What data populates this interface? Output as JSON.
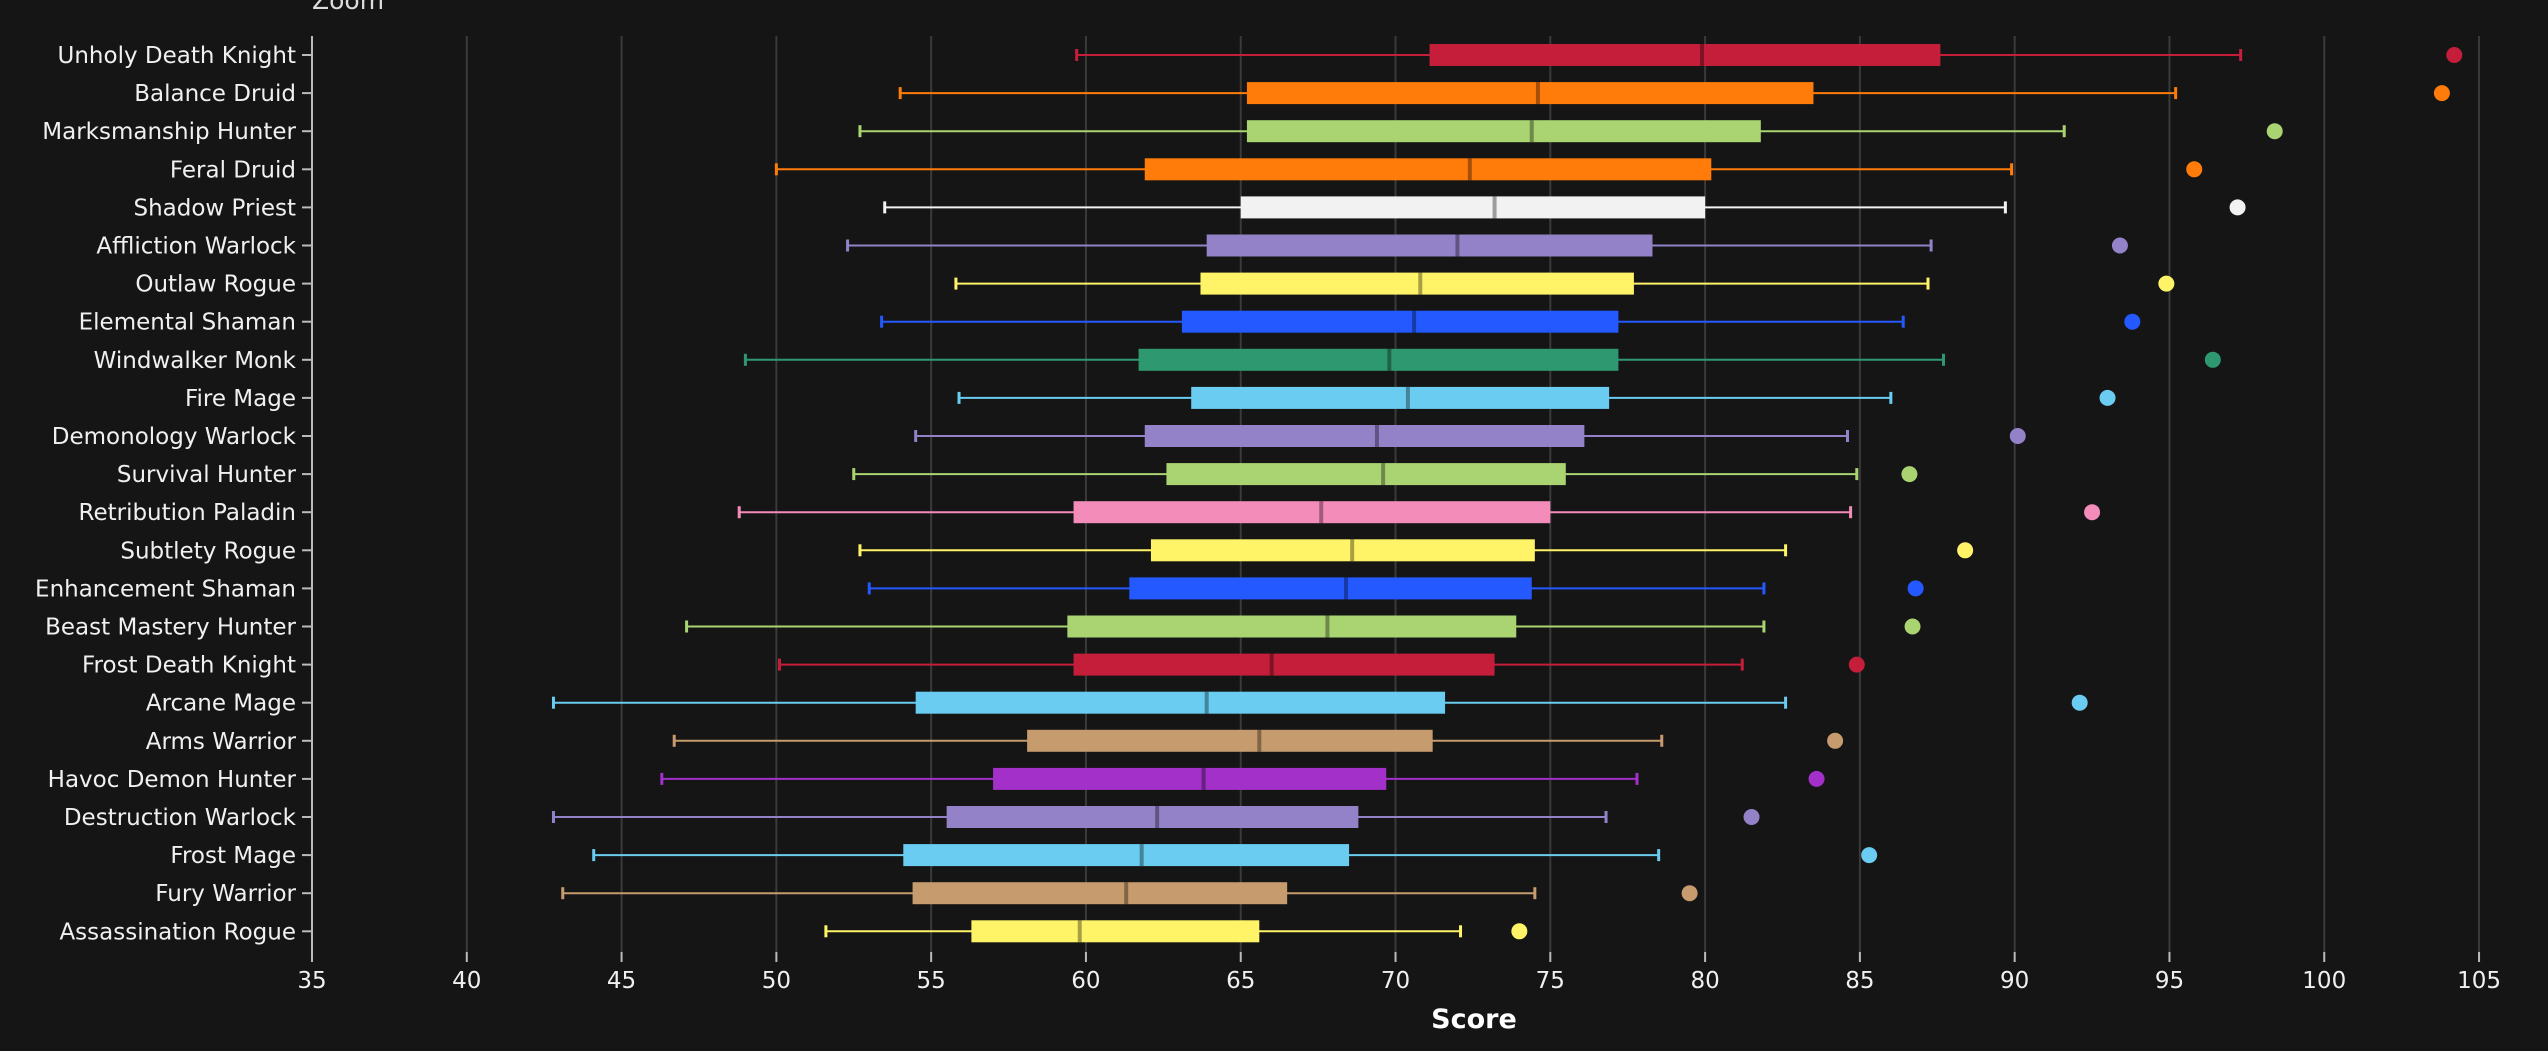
{
  "zoom_label": "Zoom",
  "chart_data": {
    "type": "boxplot",
    "title": "",
    "xlabel": "Score",
    "ylabel": "",
    "xlim": [
      35,
      106
    ],
    "x_ticks": [
      35,
      40,
      45,
      50,
      55,
      60,
      65,
      70,
      75,
      80,
      85,
      90,
      95,
      100,
      105
    ],
    "grid": "vertical",
    "background": "#151515",
    "series": [
      {
        "name": "Unholy Death Knight",
        "color": "#c41e3a",
        "min": 59.7,
        "q1": 71.1,
        "median": 79.9,
        "q3": 87.6,
        "max": 97.3,
        "outlier": 104.2
      },
      {
        "name": "Balance Druid",
        "color": "#ff7c0a",
        "min": 54.0,
        "q1": 65.2,
        "median": 74.6,
        "q3": 83.5,
        "max": 95.2,
        "outlier": 103.8
      },
      {
        "name": "Marksmanship Hunter",
        "color": "#aad372",
        "min": 52.7,
        "q1": 65.2,
        "median": 74.4,
        "q3": 81.8,
        "max": 91.6,
        "outlier": 98.4
      },
      {
        "name": "Feral Druid",
        "color": "#ff7c0a",
        "min": 50.0,
        "q1": 61.9,
        "median": 72.4,
        "q3": 80.2,
        "max": 89.9,
        "outlier": 95.8
      },
      {
        "name": "Shadow Priest",
        "color": "#f2f2f2",
        "min": 53.5,
        "q1": 65.0,
        "median": 73.2,
        "q3": 80.0,
        "max": 89.7,
        "outlier": 97.2
      },
      {
        "name": "Affliction Warlock",
        "color": "#9482c9",
        "min": 52.3,
        "q1": 63.9,
        "median": 72.0,
        "q3": 78.3,
        "max": 87.3,
        "outlier": 93.4
      },
      {
        "name": "Outlaw Rogue",
        "color": "#fff468",
        "min": 55.8,
        "q1": 63.7,
        "median": 70.8,
        "q3": 77.7,
        "max": 87.2,
        "outlier": 94.9
      },
      {
        "name": "Elemental Shaman",
        "color": "#2459ff",
        "min": 53.4,
        "q1": 63.1,
        "median": 70.6,
        "q3": 77.2,
        "max": 86.4,
        "outlier": 93.8
      },
      {
        "name": "Windwalker Monk",
        "color": "#2e9970",
        "min": 49.0,
        "q1": 61.7,
        "median": 69.8,
        "q3": 77.2,
        "max": 87.7,
        "outlier": 96.4
      },
      {
        "name": "Fire Mage",
        "color": "#69ccf0",
        "min": 55.9,
        "q1": 63.4,
        "median": 70.4,
        "q3": 76.9,
        "max": 86.0,
        "outlier": 93.0
      },
      {
        "name": "Demonology Warlock",
        "color": "#9482c9",
        "min": 54.5,
        "q1": 61.9,
        "median": 69.4,
        "q3": 76.1,
        "max": 84.6,
        "outlier": 90.1
      },
      {
        "name": "Survival Hunter",
        "color": "#aad372",
        "min": 52.5,
        "q1": 62.6,
        "median": 69.6,
        "q3": 75.5,
        "max": 84.9,
        "outlier": 86.6
      },
      {
        "name": "Retribution Paladin",
        "color": "#f48cba",
        "min": 48.8,
        "q1": 59.6,
        "median": 67.6,
        "q3": 75.0,
        "max": 84.7,
        "outlier": 92.5
      },
      {
        "name": "Subtlety Rogue",
        "color": "#fff468",
        "min": 52.7,
        "q1": 62.1,
        "median": 68.6,
        "q3": 74.5,
        "max": 82.6,
        "outlier": 88.4
      },
      {
        "name": "Enhancement Shaman",
        "color": "#2459ff",
        "min": 53.0,
        "q1": 61.4,
        "median": 68.4,
        "q3": 74.4,
        "max": 81.9,
        "outlier": 86.8
      },
      {
        "name": "Beast Mastery Hunter",
        "color": "#aad372",
        "min": 47.1,
        "q1": 59.4,
        "median": 67.8,
        "q3": 73.9,
        "max": 81.9,
        "outlier": 86.7
      },
      {
        "name": "Frost Death Knight",
        "color": "#c41e3a",
        "min": 50.1,
        "q1": 59.6,
        "median": 66.0,
        "q3": 73.2,
        "max": 81.2,
        "outlier": 84.9
      },
      {
        "name": "Arcane Mage",
        "color": "#69ccf0",
        "min": 42.8,
        "q1": 54.5,
        "median": 63.9,
        "q3": 71.6,
        "max": 82.6,
        "outlier": 92.1
      },
      {
        "name": "Arms Warrior",
        "color": "#c69b6d",
        "min": 46.7,
        "q1": 58.1,
        "median": 65.6,
        "q3": 71.2,
        "max": 78.6,
        "outlier": 84.2
      },
      {
        "name": "Havoc Demon Hunter",
        "color": "#a330c9",
        "min": 46.3,
        "q1": 57.0,
        "median": 63.8,
        "q3": 69.7,
        "max": 77.8,
        "outlier": 83.6
      },
      {
        "name": "Destruction Warlock",
        "color": "#9482c9",
        "min": 42.8,
        "q1": 55.5,
        "median": 62.3,
        "q3": 68.8,
        "max": 76.8,
        "outlier": 81.5
      },
      {
        "name": "Frost Mage",
        "color": "#69ccf0",
        "min": 44.1,
        "q1": 54.1,
        "median": 61.8,
        "q3": 68.5,
        "max": 78.5,
        "outlier": 85.3
      },
      {
        "name": "Fury Warrior",
        "color": "#c69b6d",
        "min": 43.1,
        "q1": 54.4,
        "median": 61.3,
        "q3": 66.5,
        "max": 74.5,
        "outlier": 79.5
      },
      {
        "name": "Assassination Rogue",
        "color": "#fff468",
        "min": 51.6,
        "q1": 56.3,
        "median": 59.8,
        "q3": 65.6,
        "max": 72.1,
        "outlier": 74.0
      }
    ]
  }
}
